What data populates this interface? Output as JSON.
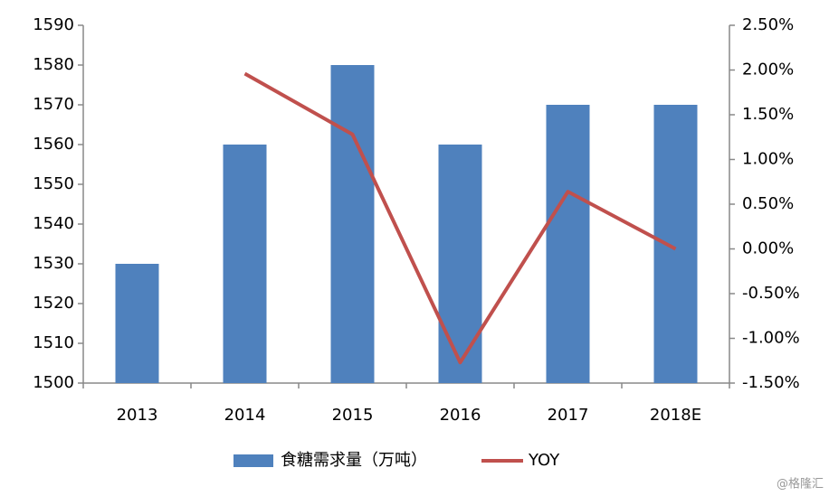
{
  "chart_data": {
    "type": "bar",
    "categories": [
      "2013",
      "2014",
      "2015",
      "2016",
      "2017",
      "2018E"
    ],
    "series": [
      {
        "name": "食糖需求量（万吨）",
        "type": "bar",
        "color": "#4f81bd",
        "values": [
          1530,
          1560,
          1580,
          1560,
          1570,
          1570
        ]
      },
      {
        "name": "YOY",
        "type": "line",
        "axis": "y2",
        "color": "#c0504d",
        "values": [
          null,
          1.96,
          1.28,
          -1.27,
          0.64,
          0
        ]
      }
    ],
    "ylim": [
      1500,
      1590
    ],
    "yticks": [
      1500,
      1510,
      1520,
      1530,
      1540,
      1550,
      1560,
      1570,
      1580,
      1590
    ],
    "y2lim": [
      -1.5,
      2.5
    ],
    "y2ticks": [
      {
        "value": -1.5,
        "label": "-1.50%"
      },
      {
        "value": -1,
        "label": "-1.00%"
      },
      {
        "value": -0.5,
        "label": "-0.50%"
      },
      {
        "value": 0,
        "label": "0.00%"
      },
      {
        "value": 0.5,
        "label": "0.50%"
      },
      {
        "value": 1,
        "label": "1.00%"
      },
      {
        "value": 1.5,
        "label": "1.50%"
      },
      {
        "value": 2,
        "label": "2.00%"
      },
      {
        "value": 2.5,
        "label": "2.50%"
      }
    ],
    "grid": false,
    "legend": "bottom",
    "watermark": "@格隆汇"
  }
}
